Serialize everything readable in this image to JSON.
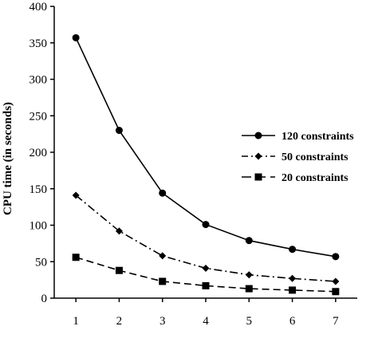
{
  "chart_data": {
    "type": "line",
    "xlabel": "",
    "ylabel": "CPU time (in seconds)",
    "x": [
      1,
      2,
      3,
      4,
      5,
      6,
      7
    ],
    "xlim": [
      0.5,
      7.5
    ],
    "ylim": [
      0,
      400
    ],
    "yticks": [
      0,
      50,
      100,
      150,
      200,
      250,
      300,
      350,
      400
    ],
    "xticks": [
      1,
      2,
      3,
      4,
      5,
      6,
      7
    ],
    "grid": false,
    "legend_position": "right",
    "series": [
      {
        "name": "120 constraints",
        "values": [
          357,
          230,
          144,
          101,
          79,
          67,
          57
        ],
        "marker": "circle",
        "line_style": "solid"
      },
      {
        "name": "50 constraints",
        "values": [
          141,
          92,
          58,
          41,
          32,
          27,
          23
        ],
        "marker": "diamond",
        "line_style": "dash-dot"
      },
      {
        "name": "20 constraints",
        "values": [
          56,
          38,
          23,
          17,
          13,
          11,
          9
        ],
        "marker": "square",
        "line_style": "dashed"
      }
    ]
  }
}
